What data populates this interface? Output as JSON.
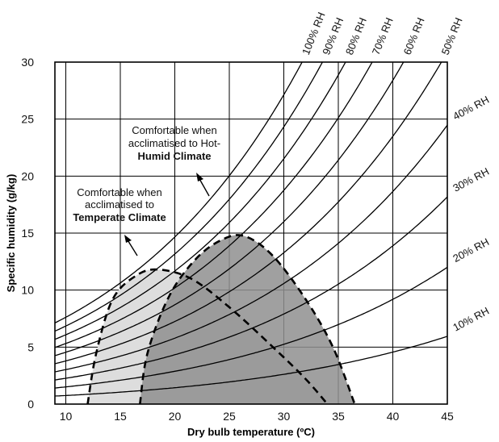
{
  "chart_data": {
    "type": "line",
    "xlabel": "Dry bulb temperature (ºC)",
    "ylabel": "Specific humidity (g/kg)",
    "xlim": [
      9,
      45
    ],
    "ylim": [
      0,
      30
    ],
    "x_ticks": [
      "10",
      "15",
      "20",
      "25",
      "30",
      "35",
      "40",
      "45"
    ],
    "y_ticks": [
      "0",
      "5",
      "10",
      "15",
      "20",
      "25",
      "30"
    ],
    "grid": true,
    "rh_curves": [
      {
        "rh": 100,
        "label": "100% RH"
      },
      {
        "rh": 90,
        "label": "90% RH"
      },
      {
        "rh": 80,
        "label": "80% RH"
      },
      {
        "rh": 70,
        "label": "70% RH"
      },
      {
        "rh": 60,
        "label": "60% RH"
      },
      {
        "rh": 50,
        "label": "50% RH"
      },
      {
        "rh": 40,
        "label": "40% RH"
      },
      {
        "rh": 30,
        "label": "30% RH"
      },
      {
        "rh": 20,
        "label": "20% RH"
      },
      {
        "rh": 10,
        "label": "10% RH"
      }
    ],
    "comfort_zones": [
      {
        "climate": "Temperate Climate",
        "annotation": [
          "Comfortable when",
          "acclimatised to",
          "Temperate Climate"
        ],
        "fill": "#dddddd",
        "boundary": [
          [
            12,
            0
          ],
          [
            12.8,
            4.5
          ],
          [
            14.3,
            9.2
          ],
          [
            16.5,
            11.3
          ],
          [
            18.5,
            11.8
          ],
          [
            21.5,
            11
          ],
          [
            25,
            8.5
          ],
          [
            29,
            5
          ],
          [
            32,
            2.2
          ],
          [
            34,
            0
          ]
        ]
      },
      {
        "climate": "Hot-Humid Climate",
        "annotation": [
          "Comfortable when",
          "acclimatised to Hot-",
          "Humid Climate"
        ],
        "fill": "#8f8f8f",
        "boundary": [
          [
            16.8,
            0
          ],
          [
            17.5,
            4.5
          ],
          [
            19.5,
            9.5
          ],
          [
            22,
            12.8
          ],
          [
            24.5,
            14.5
          ],
          [
            26.5,
            14.7
          ],
          [
            29,
            13
          ],
          [
            32,
            9.2
          ],
          [
            34.5,
            5
          ],
          [
            36.5,
            0
          ]
        ]
      }
    ],
    "colors": {
      "gridline": "#000000",
      "curve": "#000000",
      "temperate_fill": "#dddddd",
      "hot_humid_fill": "#8f8f8f"
    }
  }
}
